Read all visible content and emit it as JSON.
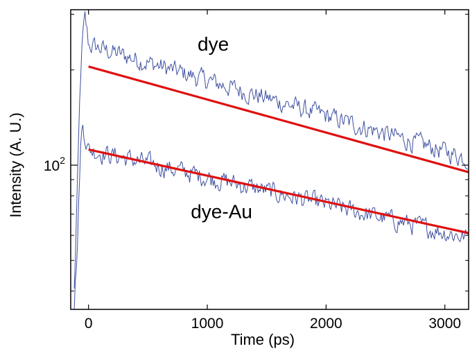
{
  "chart_data": {
    "type": "line",
    "xlabel": "Time (ps)",
    "ylabel": "Intensity (A. U.)",
    "xlim": [
      -150,
      3200
    ],
    "ylim": [
      35,
      310
    ],
    "y_scale": "log",
    "grid": false,
    "x_ticks": [
      0,
      1000,
      2000,
      3000
    ],
    "y_ticks": [
      {
        "value": 100,
        "base": "10",
        "exponent": "2"
      }
    ],
    "colors": {
      "data": "#3d4f9f",
      "fit": "#e01010"
    },
    "annotations": [
      {
        "text": "dye",
        "x": 1050,
        "y": 230
      },
      {
        "text": "dye-Au",
        "x": 1120,
        "y": 68
      }
    ],
    "series": [
      {
        "role": "data",
        "noise_pct": 0.07,
        "x": [
          -120,
          -90,
          -70,
          -50,
          -30,
          -10,
          0,
          3200
        ],
        "values": [
          40,
          95,
          180,
          250,
          290,
          260,
          240,
          105
        ]
      },
      {
        "role": "fit",
        "x": [
          0,
          3200
        ],
        "values": [
          205,
          95
        ]
      },
      {
        "role": "data",
        "noise_pct": 0.07,
        "x": [
          -120,
          -90,
          -70,
          -50,
          -30,
          -10,
          0,
          3200
        ],
        "values": [
          36,
          60,
          110,
          135,
          125,
          115,
          112,
          59
        ]
      },
      {
        "role": "fit",
        "x": [
          0,
          3200
        ],
        "values": [
          112,
          61
        ]
      }
    ]
  }
}
